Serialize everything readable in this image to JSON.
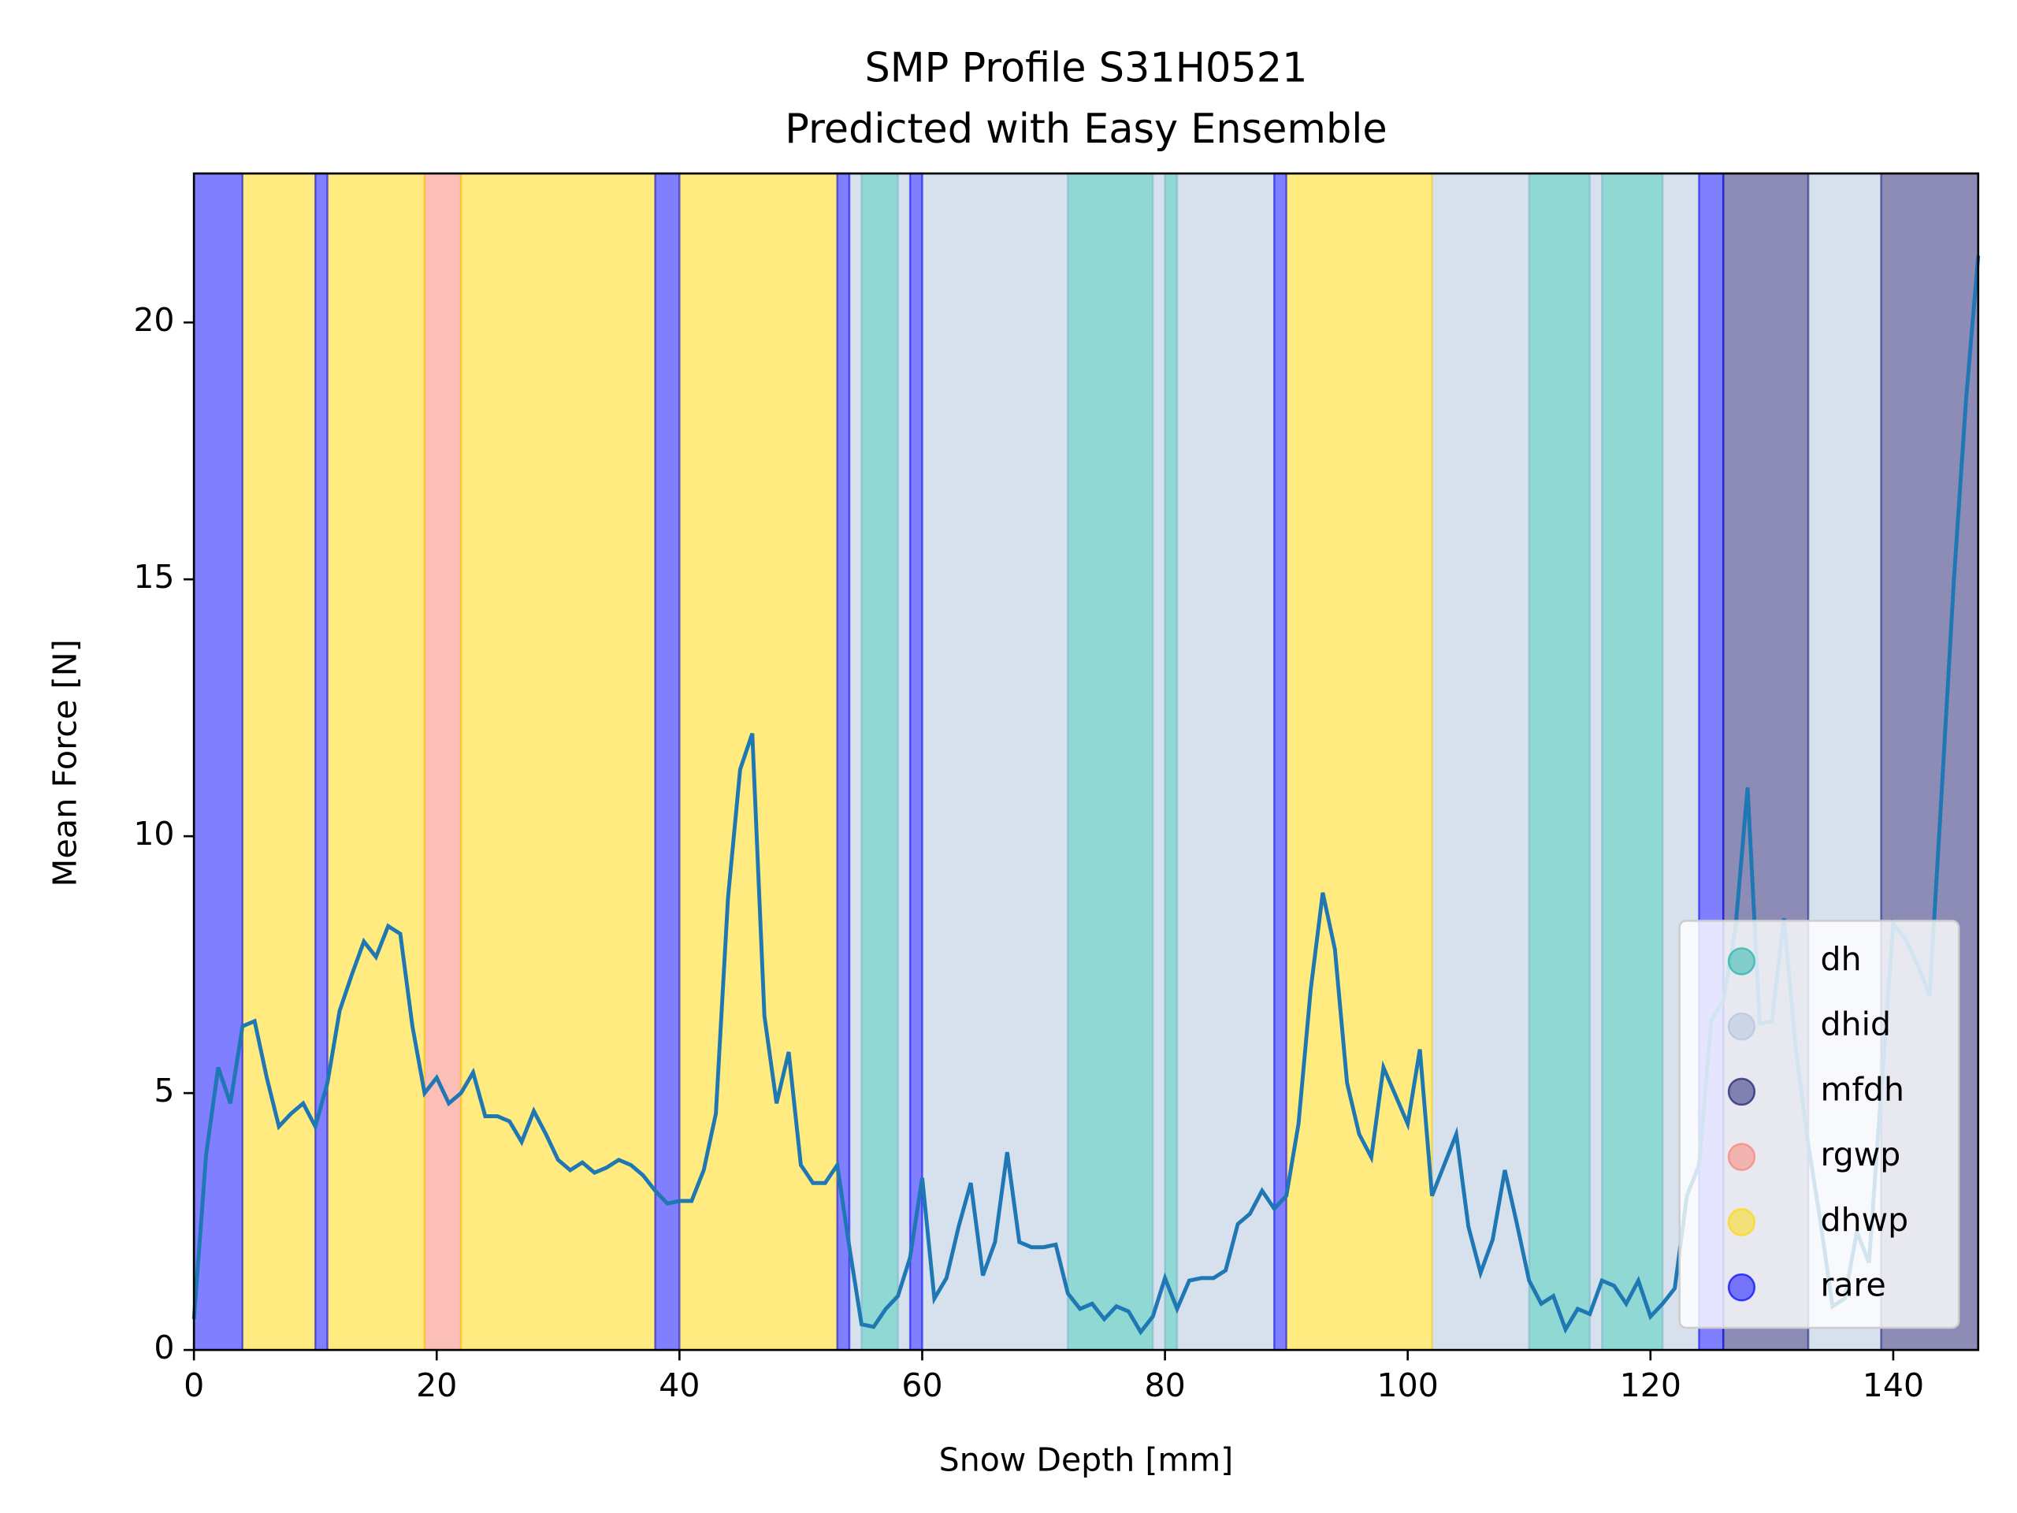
{
  "chart_data": {
    "type": "band-line",
    "title": "SMP Profile S31H0521",
    "subtitle": "Predicted with Easy Ensemble",
    "xlabel": "Snow Depth [mm]",
    "ylabel": "Mean Force [N]",
    "xlim": [
      0,
      147
    ],
    "ylim": [
      0,
      22.9
    ],
    "xticks": [
      0,
      20,
      40,
      60,
      80,
      100,
      120,
      140
    ],
    "yticks": [
      0,
      5,
      10,
      15,
      20
    ],
    "legend": "lower right",
    "band_alpha": 0.5,
    "series": [
      {
        "name": "dh",
        "color": "#20b2aa",
        "spans": [
          {
            "start": 55,
            "end": 58
          },
          {
            "start": 72,
            "end": 79
          },
          {
            "start": 80,
            "end": 81
          },
          {
            "start": 110,
            "end": 115
          },
          {
            "start": 116,
            "end": 121
          }
        ]
      },
      {
        "name": "dhid",
        "color": "#b0c4de",
        "spans": [
          {
            "start": 54,
            "end": 55
          },
          {
            "start": 58,
            "end": 59
          },
          {
            "start": 60,
            "end": 72
          },
          {
            "start": 79,
            "end": 80
          },
          {
            "start": 81,
            "end": 89
          },
          {
            "start": 102,
            "end": 110
          },
          {
            "start": 115,
            "end": 116
          },
          {
            "start": 121,
            "end": 124
          },
          {
            "start": 133,
            "end": 139
          }
        ]
      },
      {
        "name": "mfdh",
        "color": "#191970",
        "spans": [
          {
            "start": 126,
            "end": 133
          },
          {
            "start": 139,
            "end": 147
          }
        ]
      },
      {
        "name": "rgwp",
        "color": "#fa8072",
        "spans": [
          {
            "start": 19,
            "end": 22
          }
        ]
      },
      {
        "name": "dhwp",
        "color": "#ffd700",
        "spans": [
          {
            "start": 4,
            "end": 10
          },
          {
            "start": 11,
            "end": 19
          },
          {
            "start": 22,
            "end": 38
          },
          {
            "start": 40,
            "end": 53
          },
          {
            "start": 90,
            "end": 102
          }
        ]
      },
      {
        "name": "rare",
        "color": "#0000ff",
        "spans": [
          {
            "start": 0,
            "end": 4
          },
          {
            "start": 10,
            "end": 11
          },
          {
            "start": 38,
            "end": 40
          },
          {
            "start": 53,
            "end": 54
          },
          {
            "start": 59,
            "end": 60
          },
          {
            "start": 89,
            "end": 90
          },
          {
            "start": 124,
            "end": 126
          }
        ]
      }
    ],
    "profile": {
      "color": "#1f77b4",
      "x": [
        0,
        1,
        2,
        3,
        4,
        5,
        6,
        7,
        8,
        9,
        10,
        11,
        12,
        13,
        14,
        15,
        16,
        17,
        18,
        19,
        20,
        21,
        22,
        23,
        24,
        25,
        26,
        27,
        28,
        29,
        30,
        31,
        32,
        33,
        34,
        35,
        36,
        37,
        38,
        39,
        40,
        41,
        42,
        43,
        44,
        45,
        46,
        47,
        48,
        49,
        50,
        51,
        52,
        53,
        54,
        55,
        56,
        57,
        58,
        59,
        60,
        61,
        62,
        63,
        64,
        65,
        66,
        67,
        68,
        69,
        70,
        71,
        72,
        73,
        74,
        75,
        76,
        77,
        78,
        79,
        80,
        81,
        82,
        83,
        84,
        85,
        86,
        87,
        88,
        89,
        90,
        91,
        92,
        93,
        94,
        95,
        96,
        97,
        98,
        99,
        100,
        101,
        102,
        103,
        104,
        105,
        106,
        107,
        108,
        109,
        110,
        111,
        112,
        113,
        114,
        115,
        116,
        117,
        118,
        119,
        120,
        121,
        122,
        123,
        124,
        125,
        126,
        127,
        128,
        129,
        130,
        131,
        132,
        133,
        134,
        135,
        136,
        137,
        138,
        139,
        140,
        141,
        142,
        143,
        144,
        145,
        146,
        147
      ],
      "values": [
        0.6,
        3.8,
        5.5,
        4.8,
        6.3,
        6.4,
        5.3,
        4.35,
        4.6,
        4.8,
        4.35,
        5.2,
        6.6,
        7.3,
        7.95,
        7.65,
        8.25,
        8.1,
        6.3,
        5.0,
        5.3,
        4.8,
        5.0,
        5.4,
        4.55,
        4.55,
        4.45,
        4.05,
        4.65,
        4.2,
        3.7,
        3.5,
        3.65,
        3.45,
        3.55,
        3.7,
        3.6,
        3.4,
        3.1,
        2.85,
        2.9,
        2.9,
        3.5,
        4.6,
        8.8,
        11.3,
        12.0,
        6.5,
        4.8,
        5.8,
        3.6,
        3.25,
        3.25,
        3.6,
        2.0,
        0.5,
        0.45,
        0.8,
        1.05,
        1.8,
        3.35,
        1.0,
        1.4,
        2.4,
        3.25,
        1.45,
        2.1,
        3.85,
        2.1,
        2.0,
        2.0,
        2.05,
        1.1,
        0.8,
        0.9,
        0.6,
        0.85,
        0.75,
        0.35,
        0.65,
        1.4,
        0.8,
        1.35,
        1.4,
        1.4,
        1.55,
        2.45,
        2.65,
        3.1,
        2.75,
        3.0,
        4.4,
        7.0,
        8.9,
        7.8,
        5.2,
        4.2,
        3.75,
        5.5,
        4.95,
        4.4,
        5.85,
        3.0,
        3.6,
        4.2,
        2.4,
        1.5,
        2.15,
        3.5,
        2.45,
        1.35,
        0.9,
        1.05,
        0.4,
        0.8,
        0.7,
        1.35,
        1.25,
        0.9,
        1.35,
        0.65,
        0.9,
        1.2,
        3.0,
        3.6,
        6.4,
        6.8,
        8.2,
        10.95,
        6.35,
        6.4,
        8.4,
        5.8,
        4.0,
        2.5,
        0.85,
        1.0,
        2.3,
        1.7,
        5.0,
        8.3,
        8.0,
        7.5,
        6.9,
        10.9,
        15.0,
        18.5,
        21.3
      ]
    }
  }
}
